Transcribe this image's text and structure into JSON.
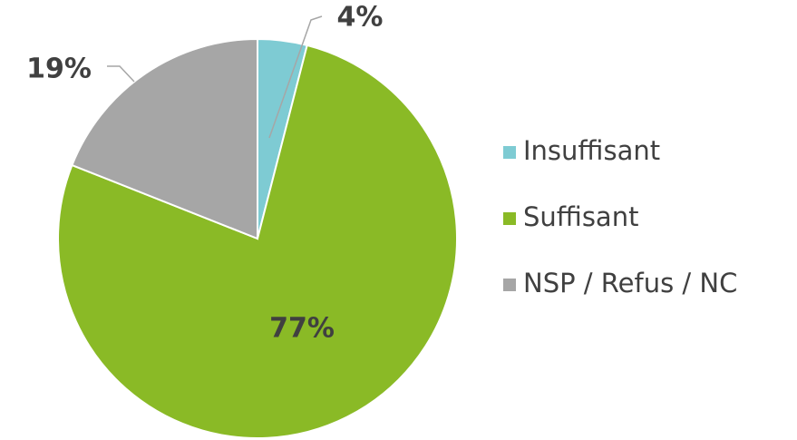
{
  "chart_data": {
    "type": "pie",
    "categories": [
      "Insuffisant",
      "Suffisant",
      "NSP / Refus / NC"
    ],
    "values": [
      4,
      77,
      19
    ],
    "value_labels": [
      "4%",
      "77%",
      "19%"
    ],
    "colors": [
      "#7ecbd3",
      "#8aba26",
      "#a6a6a6"
    ],
    "legend": "right"
  }
}
